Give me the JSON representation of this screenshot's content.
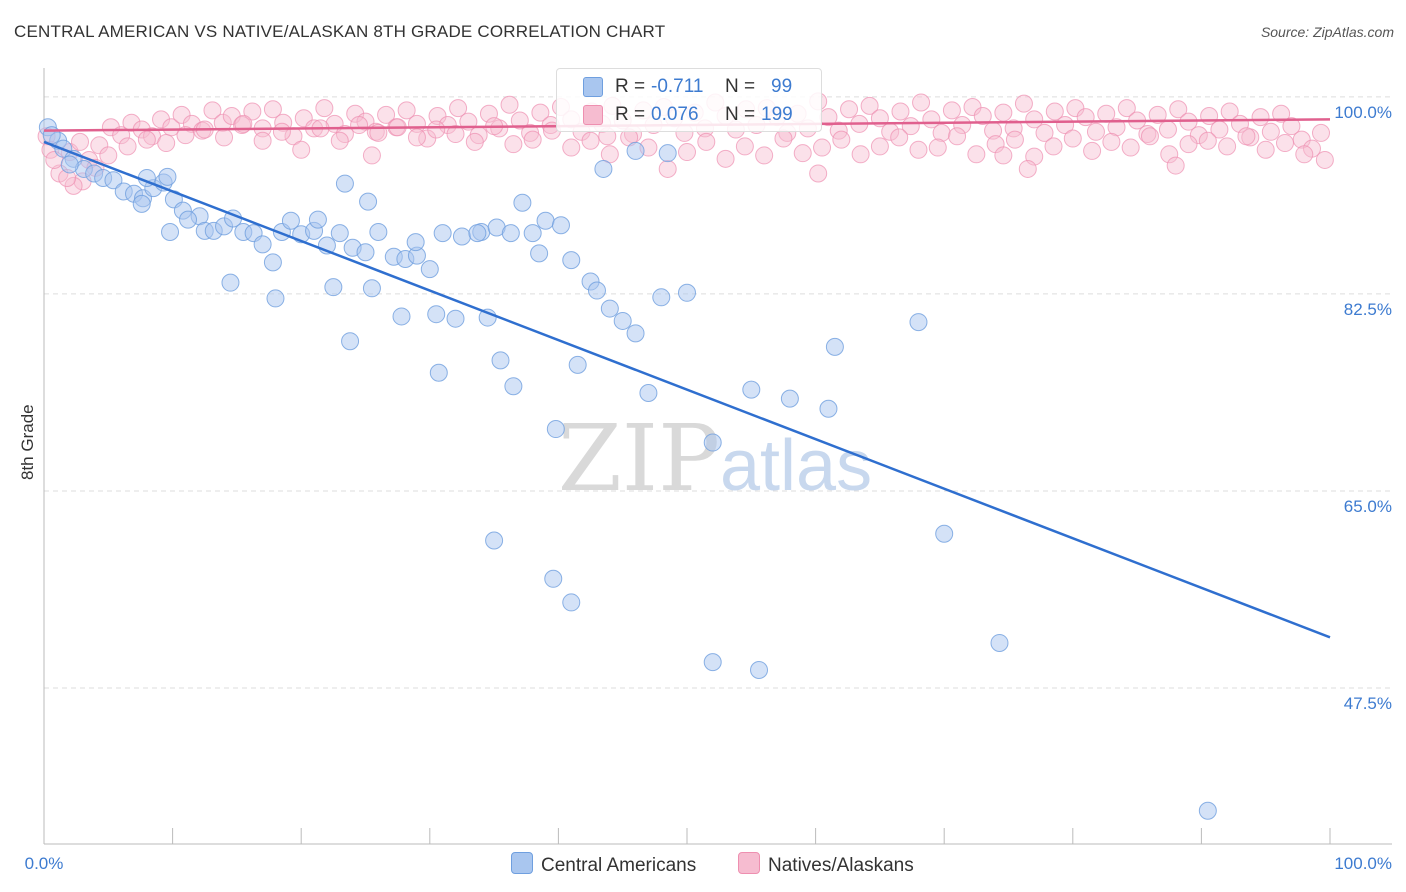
{
  "title": "CENTRAL AMERICAN VS NATIVE/ALASKAN 8TH GRADE CORRELATION CHART",
  "source": "Source: ZipAtlas.com",
  "watermark": {
    "zip": "ZIP",
    "atlas": "atlas"
  },
  "colors": {
    "blue": "#6f9fdf",
    "blue_fill": "#a9c6ef",
    "blue_line": "#2f6fcf",
    "pink": "#ee8fb0",
    "pink_fill": "#f6bcd0",
    "pink_line": "#e0608e",
    "axis_text": "#3d7bd0",
    "grid": "#dddddd"
  },
  "legend": {
    "blue": {
      "r_label": "R =",
      "r_value": "-0.711",
      "n_label": "N =",
      "n_value": "99"
    },
    "pink": {
      "r_label": "R =",
      "r_value": "0.076",
      "n_label": "N =",
      "n_value": "199"
    }
  },
  "chart_data": {
    "type": "scatter",
    "title": "CENTRAL AMERICAN VS NATIVE/ALASKAN 8TH GRADE CORRELATION CHART",
    "xlabel": "",
    "ylabel": "8th Grade",
    "xlim": [
      0,
      100
    ],
    "ylim": [
      34,
      101.5
    ],
    "x_tick_labels": [
      "0.0%",
      "100.0%"
    ],
    "y_ticks": [
      47.5,
      65.0,
      82.5,
      100.0
    ],
    "y_tick_labels": [
      "47.5%",
      "65.0%",
      "82.5%",
      "100.0%"
    ],
    "series": [
      {
        "name": "Central Americans",
        "color": "#6f9fdf",
        "trend": {
          "x": [
            0,
            100
          ],
          "y": [
            96.0,
            52.0
          ]
        },
        "points": [
          [
            0.3,
            97.3
          ],
          [
            1.1,
            96.1
          ],
          [
            1.5,
            95.4
          ],
          [
            2.3,
            94.5
          ],
          [
            3.1,
            93.6
          ],
          [
            3.9,
            93.2
          ],
          [
            4.6,
            92.8
          ],
          [
            5.4,
            92.6
          ],
          [
            6.2,
            91.6
          ],
          [
            7.0,
            91.4
          ],
          [
            7.7,
            91.0
          ],
          [
            8.5,
            91.9
          ],
          [
            9.3,
            92.4
          ],
          [
            9.6,
            92.9
          ],
          [
            10.1,
            90.9
          ],
          [
            10.8,
            89.9
          ],
          [
            12.1,
            89.4
          ],
          [
            12.5,
            88.1
          ],
          [
            13.2,
            88.1
          ],
          [
            14.0,
            88.5
          ],
          [
            14.7,
            89.2
          ],
          [
            15.5,
            88.0
          ],
          [
            16.3,
            87.9
          ],
          [
            17.0,
            86.9
          ],
          [
            7.6,
            90.5
          ],
          [
            9.8,
            88.0
          ],
          [
            11.2,
            89.1
          ],
          [
            18.5,
            88.0
          ],
          [
            19.2,
            89.0
          ],
          [
            20.0,
            87.8
          ],
          [
            21.0,
            88.1
          ],
          [
            22.0,
            86.8
          ],
          [
            23.0,
            87.9
          ],
          [
            24.0,
            86.6
          ],
          [
            25.0,
            86.2
          ],
          [
            26.0,
            88.0
          ],
          [
            27.2,
            85.8
          ],
          [
            28.1,
            85.6
          ],
          [
            29.0,
            85.9
          ],
          [
            30.0,
            84.7
          ],
          [
            31.0,
            87.9
          ],
          [
            32.5,
            87.6
          ],
          [
            34.0,
            88.0
          ],
          [
            35.2,
            88.4
          ],
          [
            36.3,
            87.9
          ],
          [
            38.0,
            87.9
          ],
          [
            39.0,
            89.0
          ],
          [
            40.2,
            88.6
          ],
          [
            41.0,
            85.5
          ],
          [
            42.5,
            83.6
          ],
          [
            43.0,
            82.8
          ],
          [
            44.0,
            81.2
          ],
          [
            45.0,
            80.1
          ],
          [
            46.0,
            79.0
          ],
          [
            48.0,
            82.2
          ],
          [
            50.0,
            82.6
          ],
          [
            14.5,
            83.5
          ],
          [
            18.0,
            82.1
          ],
          [
            22.5,
            83.1
          ],
          [
            25.5,
            83.0
          ],
          [
            27.8,
            80.5
          ],
          [
            30.5,
            80.7
          ],
          [
            32.0,
            80.3
          ],
          [
            34.5,
            80.4
          ],
          [
            35.5,
            76.6
          ],
          [
            23.8,
            78.3
          ],
          [
            30.7,
            75.5
          ],
          [
            36.5,
            74.3
          ],
          [
            39.8,
            70.5
          ],
          [
            41.5,
            76.2
          ],
          [
            47.0,
            73.7
          ],
          [
            52.0,
            69.3
          ],
          [
            55.0,
            74.0
          ],
          [
            58.0,
            73.2
          ],
          [
            61.5,
            77.8
          ],
          [
            68.0,
            80.0
          ],
          [
            61.0,
            72.3
          ],
          [
            70.0,
            61.2
          ],
          [
            35.0,
            60.6
          ],
          [
            39.6,
            57.2
          ],
          [
            41.0,
            55.1
          ],
          [
            52.0,
            49.8
          ],
          [
            55.6,
            49.1
          ],
          [
            74.3,
            51.5
          ],
          [
            90.5,
            36.6
          ],
          [
            17.8,
            85.3
          ],
          [
            21.3,
            89.1
          ],
          [
            23.4,
            92.3
          ],
          [
            25.2,
            90.7
          ],
          [
            28.9,
            87.1
          ],
          [
            33.7,
            87.9
          ],
          [
            37.2,
            90.6
          ],
          [
            38.5,
            86.1
          ],
          [
            43.5,
            93.6
          ],
          [
            46.0,
            95.2
          ],
          [
            48.5,
            95.0
          ],
          [
            0.6,
            96.6
          ],
          [
            2.0,
            94.0
          ],
          [
            8.0,
            92.8
          ]
        ]
      },
      {
        "name": "Natives/Alaskans",
        "color": "#ee8fb0",
        "trend": {
          "x": [
            0,
            100
          ],
          "y": [
            97.0,
            98.0
          ]
        },
        "points": [
          [
            0.2,
            96.5
          ],
          [
            0.5,
            95.3
          ],
          [
            1.2,
            93.2
          ],
          [
            2.0,
            95.1
          ],
          [
            2.8,
            96.0
          ],
          [
            3.5,
            94.4
          ],
          [
            4.3,
            95.7
          ],
          [
            5.2,
            97.3
          ],
          [
            6.0,
            96.6
          ],
          [
            6.8,
            97.7
          ],
          [
            7.6,
            97.1
          ],
          [
            8.4,
            96.5
          ],
          [
            9.1,
            98.0
          ],
          [
            9.9,
            97.3
          ],
          [
            10.7,
            98.4
          ],
          [
            11.5,
            97.6
          ],
          [
            12.3,
            97.0
          ],
          [
            13.1,
            98.8
          ],
          [
            13.9,
            97.7
          ],
          [
            14.6,
            98.3
          ],
          [
            15.4,
            97.5
          ],
          [
            16.2,
            98.7
          ],
          [
            17.0,
            97.2
          ],
          [
            17.8,
            98.9
          ],
          [
            18.6,
            97.7
          ],
          [
            19.4,
            96.5
          ],
          [
            20.2,
            98.1
          ],
          [
            21.0,
            97.2
          ],
          [
            21.8,
            99.0
          ],
          [
            22.6,
            97.6
          ],
          [
            23.4,
            96.7
          ],
          [
            24.2,
            98.5
          ],
          [
            25.0,
            97.8
          ],
          [
            25.8,
            96.9
          ],
          [
            26.6,
            98.4
          ],
          [
            27.4,
            97.3
          ],
          [
            28.2,
            98.8
          ],
          [
            29.0,
            97.6
          ],
          [
            29.8,
            96.3
          ],
          [
            30.6,
            98.3
          ],
          [
            31.4,
            97.5
          ],
          [
            32.2,
            99.0
          ],
          [
            33.0,
            97.8
          ],
          [
            33.8,
            96.6
          ],
          [
            34.6,
            98.5
          ],
          [
            35.4,
            97.2
          ],
          [
            36.2,
            99.3
          ],
          [
            37.0,
            97.9
          ],
          [
            37.8,
            96.8
          ],
          [
            38.6,
            98.6
          ],
          [
            39.4,
            97.5
          ],
          [
            40.2,
            99.1
          ],
          [
            41.0,
            98.0
          ],
          [
            41.8,
            96.9
          ],
          [
            42.6,
            98.7
          ],
          [
            43.4,
            97.6
          ],
          [
            44.2,
            99.2
          ],
          [
            45.0,
            97.9
          ],
          [
            45.8,
            96.7
          ],
          [
            46.6,
            98.8
          ],
          [
            47.4,
            97.5
          ],
          [
            48.2,
            99.1
          ],
          [
            49.0,
            98.1
          ],
          [
            49.8,
            96.8
          ],
          [
            50.6,
            98.6
          ],
          [
            51.4,
            97.2
          ],
          [
            52.2,
            99.5
          ],
          [
            53.0,
            98.3
          ],
          [
            53.8,
            97.1
          ],
          [
            54.6,
            98.9
          ],
          [
            55.4,
            97.5
          ],
          [
            56.2,
            99.0
          ],
          [
            57.0,
            98.2
          ],
          [
            57.8,
            96.8
          ],
          [
            58.6,
            98.5
          ],
          [
            59.4,
            97.2
          ],
          [
            60.2,
            99.6
          ],
          [
            61.0,
            98.2
          ],
          [
            61.8,
            97.0
          ],
          [
            62.6,
            98.9
          ],
          [
            63.4,
            97.6
          ],
          [
            64.2,
            99.2
          ],
          [
            65.0,
            98.1
          ],
          [
            65.8,
            96.9
          ],
          [
            66.6,
            98.7
          ],
          [
            67.4,
            97.4
          ],
          [
            68.2,
            99.5
          ],
          [
            69.0,
            98.0
          ],
          [
            69.8,
            96.8
          ],
          [
            70.6,
            98.8
          ],
          [
            71.4,
            97.5
          ],
          [
            72.2,
            99.1
          ],
          [
            73.0,
            98.3
          ],
          [
            73.8,
            97.0
          ],
          [
            74.6,
            98.6
          ],
          [
            75.4,
            97.2
          ],
          [
            76.2,
            99.4
          ],
          [
            77.0,
            98.0
          ],
          [
            77.8,
            96.8
          ],
          [
            78.6,
            98.7
          ],
          [
            79.4,
            97.5
          ],
          [
            80.2,
            99.0
          ],
          [
            81.0,
            98.2
          ],
          [
            81.8,
            96.9
          ],
          [
            82.6,
            98.5
          ],
          [
            83.4,
            97.3
          ],
          [
            84.2,
            99.0
          ],
          [
            85.0,
            97.9
          ],
          [
            85.8,
            96.7
          ],
          [
            86.6,
            98.4
          ],
          [
            87.4,
            97.1
          ],
          [
            88.2,
            98.9
          ],
          [
            89.0,
            97.8
          ],
          [
            89.8,
            96.6
          ],
          [
            90.6,
            98.3
          ],
          [
            91.4,
            97.1
          ],
          [
            92.2,
            98.7
          ],
          [
            93.0,
            97.6
          ],
          [
            93.8,
            96.4
          ],
          [
            94.6,
            98.2
          ],
          [
            95.4,
            96.9
          ],
          [
            96.2,
            98.5
          ],
          [
            97.0,
            97.4
          ],
          [
            97.8,
            96.2
          ],
          [
            98.6,
            95.4
          ],
          [
            99.3,
            96.8
          ],
          [
            99.6,
            94.4
          ],
          [
            98.0,
            94.9
          ],
          [
            96.5,
            95.9
          ],
          [
            95.0,
            95.3
          ],
          [
            93.5,
            96.5
          ],
          [
            92.0,
            95.6
          ],
          [
            90.5,
            96.1
          ],
          [
            89.0,
            95.8
          ],
          [
            87.5,
            94.9
          ],
          [
            86.0,
            96.5
          ],
          [
            84.5,
            95.5
          ],
          [
            83.0,
            96.0
          ],
          [
            81.5,
            95.2
          ],
          [
            80.0,
            96.3
          ],
          [
            78.5,
            95.6
          ],
          [
            77.0,
            94.7
          ],
          [
            75.5,
            96.2
          ],
          [
            74.0,
            95.8
          ],
          [
            72.5,
            94.9
          ],
          [
            71.0,
            96.5
          ],
          [
            69.5,
            95.5
          ],
          [
            68.0,
            95.3
          ],
          [
            66.5,
            96.4
          ],
          [
            65.0,
            95.6
          ],
          [
            63.5,
            94.9
          ],
          [
            62.0,
            96.2
          ],
          [
            60.5,
            95.5
          ],
          [
            59.0,
            95.0
          ],
          [
            57.5,
            96.3
          ],
          [
            56.0,
            94.8
          ],
          [
            54.5,
            95.6
          ],
          [
            53.0,
            94.5
          ],
          [
            51.5,
            96.0
          ],
          [
            50.0,
            95.1
          ],
          [
            48.5,
            93.6
          ],
          [
            47.0,
            95.5
          ],
          [
            45.5,
            96.4
          ],
          [
            44.0,
            94.9
          ],
          [
            42.5,
            96.1
          ],
          [
            41.0,
            95.5
          ],
          [
            39.5,
            97.0
          ],
          [
            38.0,
            96.2
          ],
          [
            36.5,
            95.8
          ],
          [
            35.0,
            97.4
          ],
          [
            33.5,
            96.0
          ],
          [
            32.0,
            96.7
          ],
          [
            30.5,
            97.1
          ],
          [
            29.0,
            96.4
          ],
          [
            27.5,
            97.3
          ],
          [
            26.0,
            96.8
          ],
          [
            24.5,
            97.5
          ],
          [
            23.0,
            96.1
          ],
          [
            21.5,
            97.2
          ],
          [
            20.0,
            95.3
          ],
          [
            18.5,
            96.9
          ],
          [
            17.0,
            96.1
          ],
          [
            15.5,
            97.6
          ],
          [
            14.0,
            96.4
          ],
          [
            12.5,
            97.1
          ],
          [
            11.0,
            96.6
          ],
          [
            9.5,
            95.9
          ],
          [
            8.0,
            96.2
          ],
          [
            6.5,
            95.6
          ],
          [
            5.0,
            94.8
          ],
          [
            4.0,
            93.7
          ],
          [
            3.0,
            92.5
          ],
          [
            2.3,
            92.1
          ],
          [
            1.8,
            92.8
          ],
          [
            0.8,
            94.4
          ],
          [
            25.5,
            94.8
          ],
          [
            43.8,
            96.5
          ],
          [
            60.2,
            93.2
          ],
          [
            74.6,
            94.8
          ],
          [
            88.0,
            93.9
          ],
          [
            76.5,
            93.6
          ]
        ]
      }
    ]
  },
  "bottom_legend": {
    "blue_label": "Central Americans",
    "pink_label": "Natives/Alaskans"
  }
}
